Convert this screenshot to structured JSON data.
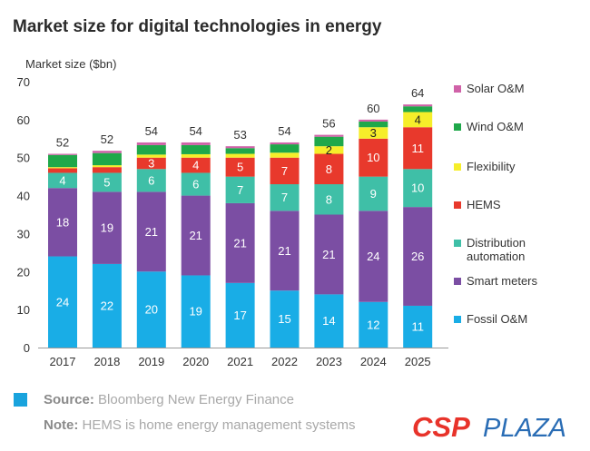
{
  "title": "Market size for digital technologies in energy",
  "footer": {
    "source_label": "Source:",
    "source_text": "Bloomberg New Energy Finance",
    "note_label": "Note:",
    "note_text": "HEMS is home energy management systems",
    "logo_part1": "CSP",
    "logo_part2": "PLAZA"
  },
  "colors": {
    "accent_square": "#19a3dd",
    "logo_red": "#e8332a",
    "logo_blue": "#2a6db5"
  },
  "chart_data": {
    "type": "bar",
    "stacked": true,
    "title": "Market size for digital technologies in energy",
    "ylabel": "Market size ($bn)",
    "xlabel": "",
    "ylim": [
      0,
      70
    ],
    "yticks": [
      0,
      10,
      20,
      30,
      40,
      50,
      60,
      70
    ],
    "grid": false,
    "legend_position": "right",
    "categories": [
      "2017",
      "2018",
      "2019",
      "2020",
      "2021",
      "2022",
      "2023",
      "2024",
      "2025"
    ],
    "totals": [
      "52",
      "52",
      "54",
      "54",
      "53",
      "54",
      "56",
      "60",
      "64"
    ],
    "total_values": [
      52,
      52,
      54,
      54,
      53,
      54,
      56,
      60,
      64
    ],
    "series": [
      {
        "name": "Fossil O&M",
        "color": "#19ade6",
        "values": [
          24,
          22,
          20,
          19,
          17,
          15,
          14,
          12,
          11
        ],
        "labels": [
          "24",
          "22",
          "20",
          "19",
          "17",
          "15",
          "14",
          "12",
          "11"
        ]
      },
      {
        "name": "Smart meters",
        "color": "#7b4ea3",
        "values": [
          18,
          19,
          21,
          21,
          21,
          21,
          21,
          24,
          26
        ],
        "labels": [
          "18",
          "19",
          "21",
          "21",
          "21",
          "21",
          "21",
          "24",
          "26"
        ]
      },
      {
        "name": "Distribution automation",
        "color": "#3fbfa7",
        "values": [
          4,
          5,
          6,
          6,
          7,
          7,
          8,
          9,
          10
        ],
        "labels": [
          "4",
          "5",
          "6",
          "6",
          "7",
          "7",
          "8",
          "9",
          "10"
        ]
      },
      {
        "name": "HEMS",
        "color": "#e8392c",
        "values": [
          1.2,
          1.5,
          3,
          4,
          5,
          7,
          8,
          10,
          11
        ],
        "labels": [
          "",
          "",
          "3",
          "4",
          "5",
          "7",
          "8",
          "10",
          "11"
        ]
      },
      {
        "name": "Flexibility",
        "color": "#f6ee2a",
        "values": [
          0.3,
          0.5,
          0.8,
          0.9,
          1,
          1.3,
          2,
          3,
          4
        ],
        "labels": [
          "",
          "",
          "",
          "",
          "",
          "",
          "2",
          "3",
          "4"
        ]
      },
      {
        "name": "Wind O&M",
        "color": "#1fa84a",
        "values": [
          3.2,
          3.2,
          2.5,
          2.4,
          1.5,
          2.2,
          2.5,
          1.5,
          1.5
        ],
        "labels": [
          "",
          "",
          "",
          "",
          "",
          "",
          "",
          "",
          ""
        ]
      },
      {
        "name": "Solar O&M",
        "color": "#d062a8",
        "values": [
          0.3,
          0.6,
          0.7,
          0.7,
          0.5,
          0.5,
          0.5,
          0.5,
          0.5
        ],
        "labels": [
          "",
          "",
          "",
          "",
          "",
          "",
          "",
          "",
          ""
        ]
      }
    ],
    "legend": [
      {
        "label": "Solar O&M",
        "color": "#d062a8"
      },
      {
        "label": "Wind O&M",
        "color": "#1fa84a"
      },
      {
        "label": "Flexibility",
        "color": "#f6ee2a"
      },
      {
        "label": "HEMS",
        "color": "#e8392c"
      },
      {
        "label": "Distribution automation",
        "color": "#3fbfa7"
      },
      {
        "label": "Smart meters",
        "color": "#7b4ea3"
      },
      {
        "label": "Fossil O&M",
        "color": "#19ade6"
      }
    ]
  }
}
